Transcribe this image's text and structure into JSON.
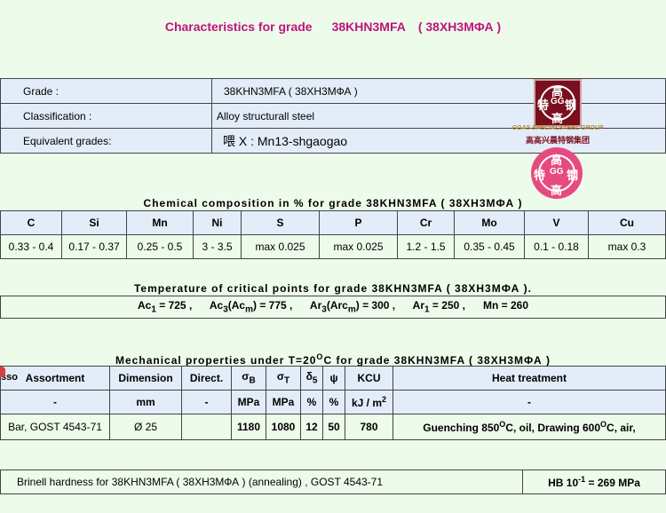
{
  "title": {
    "prefix": "Characteristics for grade",
    "grade": "38KHN3MFA",
    "grade_ru": "( 38ХН3МФА )"
  },
  "info": {
    "rows": [
      {
        "label": "Grade :",
        "value": "38KHN3MFA   ( 38ХН3МФА )"
      },
      {
        "label": "Classification :",
        "value": "Alloy structurall steel"
      },
      {
        "label": "Equivalent grades:",
        "value": "喂 X : Mn13-shgaogao"
      }
    ]
  },
  "logo": {
    "chars": [
      "高",
      "特",
      "GG",
      "钢",
      "高"
    ],
    "company_en": "GGAS SPECIALSTEEL GROUP",
    "company_cn": "高高兴晨特钢集团"
  },
  "chemical": {
    "title": "Chemical composition in % for grade   38KHN3MFA   ( 38ХН3МФА )",
    "headers": [
      "C",
      "Si",
      "Mn",
      "Ni",
      "S",
      "P",
      "Cr",
      "Mo",
      "V",
      "Cu"
    ],
    "values": [
      "0.33 - 0.4",
      "0.17 - 0.37",
      "0.25 - 0.5",
      "3 - 3.5",
      "max   0.025",
      "max   0.025",
      "1.2 - 1.5",
      "0.35 - 0.45",
      "0.1 - 0.18",
      "max   0.3"
    ]
  },
  "critical": {
    "title": "Temperature of critical points for grade   38KHN3MFA   ( 38ХН3МФА ).",
    "ac1": "725",
    "ac3": "775",
    "ar3": "300",
    "ar1": "250",
    "mn": "260"
  },
  "mechanical": {
    "title_a": "Mechanical properties under T=20",
    "title_b": "C for grade   38KHN3MFA   ( 38ХН3МФА )",
    "overlap_text": "sso",
    "headers": [
      "Assortment",
      "Dimension",
      "Direct.",
      "σB",
      "σT",
      "δ5",
      "ψ",
      "KCU",
      "Heat treatment"
    ],
    "units": [
      "-",
      "mm",
      "-",
      "MPa",
      "MPa",
      "%",
      "%",
      "kJ / m",
      "-"
    ],
    "row": [
      "Bar, GOST 4543-71",
      "Ø 25",
      "",
      "1180",
      "1080",
      "12",
      "50",
      "780"
    ],
    "heat": {
      "a": "Guenching 850",
      "b": "C, oil, Drawing 600",
      "c": "C, air,"
    }
  },
  "brinell": {
    "text": "Brinell hardness for     38KHN3MFA   ( 38ХН3МФА )   (annealing) ,        GOST 4543-71",
    "value_a": "HB 10",
    "value_exp": "-1",
    "value_b": "= 269   MPa"
  }
}
